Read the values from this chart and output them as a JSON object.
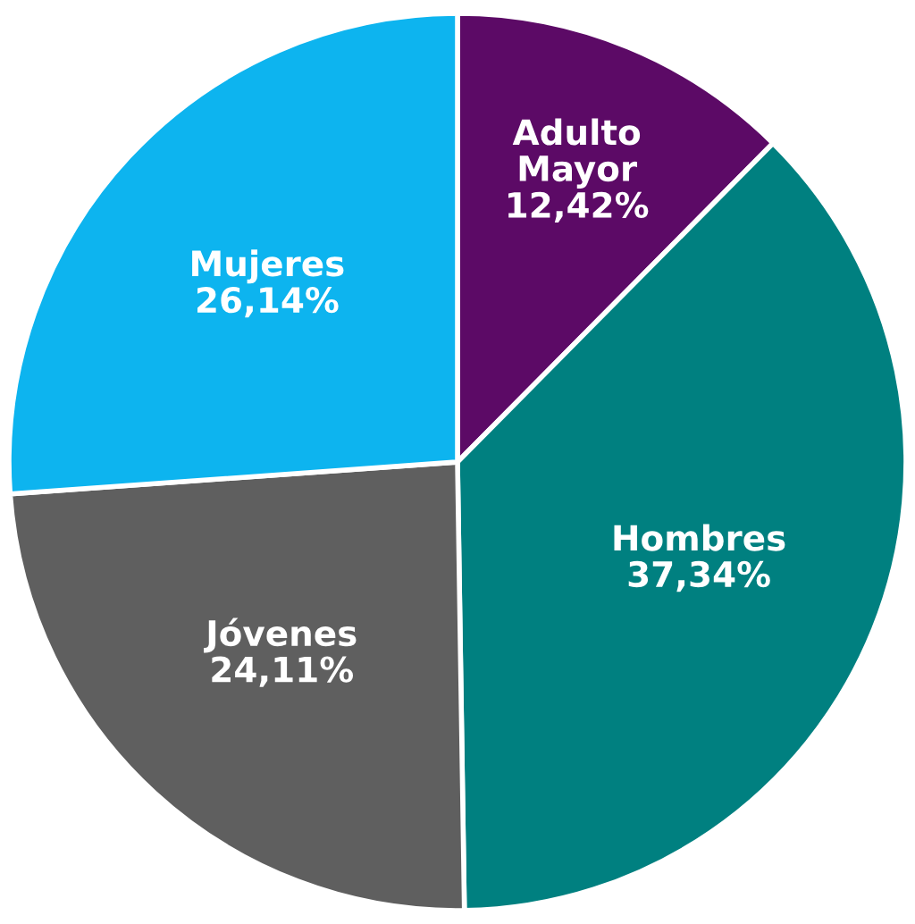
{
  "chart_data": {
    "type": "pie",
    "categories": [
      "Adulto\nMayor",
      "Hombres",
      "Jóvenes",
      "Mujeres"
    ],
    "values": [
      12.42,
      37.34,
      24.11,
      26.14
    ],
    "value_labels": [
      "12,42%",
      "37,34%",
      "24,11%",
      "26,14%"
    ],
    "colors": [
      "#5c0a66",
      "#008080",
      "#5f5f5f",
      "#0db4ef"
    ],
    "legend": false
  }
}
